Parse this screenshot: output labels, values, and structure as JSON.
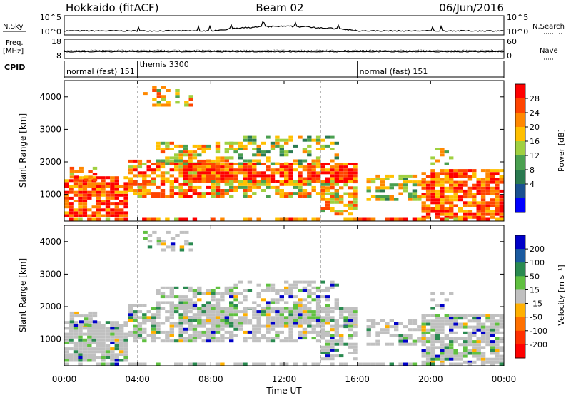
{
  "header": {
    "station": "Hokkaido (fitACF)",
    "beam": "Beam 02",
    "date": "06/Jun/2016"
  },
  "top_panels": {
    "nsky_label": "N.Sky",
    "nsearch_label": "N.Search",
    "freq_label_1": "Freq.",
    "freq_label_2": "[MHz]",
    "nave_label": "Nave",
    "cpid_label": "CPID",
    "nsky_left_ticks": [
      "10^5",
      "10^0"
    ],
    "nsky_right_ticks": [
      "10^5",
      "10^0"
    ],
    "freq_left_ticks": [
      "18",
      "8"
    ],
    "nave_right_ticks": [
      "60",
      "0"
    ],
    "cpid_segments": [
      {
        "start_hour": 0,
        "end_hour": 4,
        "label": "normal (fast) 151"
      },
      {
        "start_hour": 4,
        "end_hour": 16,
        "label": "themis 3300"
      },
      {
        "start_hour": 16,
        "end_hour": 24,
        "label": "normal (fast) 151"
      }
    ]
  },
  "chart_data": [
    {
      "type": "heatmap",
      "name": "power",
      "ylabel": "Slant Range [km]",
      "y_ticks": [
        1000,
        2000,
        3000,
        4000
      ],
      "ylim": [
        180,
        4500
      ],
      "xlim_hours": [
        0,
        24
      ],
      "colorbar_label": "Power [dB]",
      "colorbar_ticks": [
        "28",
        "24",
        "20",
        "16",
        "12",
        "8",
        "4"
      ],
      "colorbar_colors": [
        "#ff0000",
        "#ff4400",
        "#ff8800",
        "#ffc000",
        "#a0d040",
        "#4aa050",
        "#2a7a50",
        "#1a5090",
        "#0000ff"
      ]
    },
    {
      "type": "heatmap",
      "name": "velocity",
      "ylabel": "Slant Range [km]",
      "y_ticks": [
        1000,
        2000,
        3000,
        4000
      ],
      "ylim": [
        180,
        4500
      ],
      "xlim_hours": [
        0,
        24
      ],
      "xlabel": "Time UT",
      "x_ticks": [
        "00:00",
        "04:00",
        "08:00",
        "12:00",
        "16:00",
        "20:00",
        "00:00"
      ],
      "colorbar_label": "Velocity [m s⁻¹]",
      "colorbar_ticks": [
        "200",
        "100",
        "50",
        "15",
        "-15",
        "-50",
        "-100",
        "-200"
      ],
      "colorbar_colors": [
        "#0000c8",
        "#1a5aa0",
        "#2a8a50",
        "#60c040",
        "#c0c0c0",
        "#ffb000",
        "#ff7000",
        "#ff3000",
        "#ff0000"
      ]
    }
  ]
}
